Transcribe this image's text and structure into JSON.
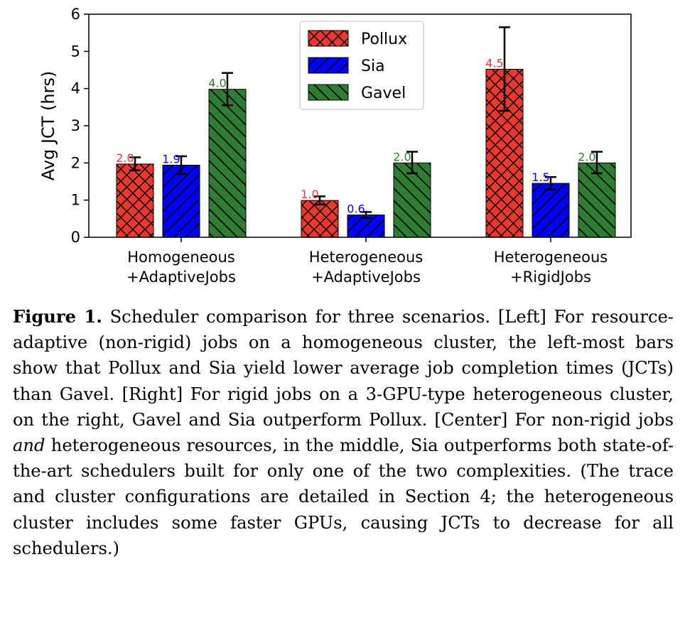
{
  "chart_data": {
    "type": "bar",
    "categories": [
      "Homogeneous\n+AdaptiveJobs",
      "Heterogeneous\n+AdaptiveJobs",
      "Heterogeneous\n+RigidJobs"
    ],
    "series": [
      {
        "name": "Pollux",
        "values": [
          1.97,
          0.99,
          4.52
        ],
        "err_low": [
          1.8,
          0.88,
          3.4
        ],
        "err_high": [
          2.15,
          1.1,
          5.65
        ],
        "labels": [
          "2.0",
          "1.0",
          "4.5"
        ],
        "color": "#e8392f",
        "label_color": "#e8392f",
        "hatch": "cross"
      },
      {
        "name": "Sia",
        "values": [
          1.94,
          0.6,
          1.45
        ],
        "err_low": [
          1.7,
          0.52,
          1.28
        ],
        "err_high": [
          2.18,
          0.68,
          1.62
        ],
        "labels": [
          "1.9",
          "0.6",
          "1.5"
        ],
        "color": "#0000ff",
        "label_color": "#0000ff",
        "hatch": "forward"
      },
      {
        "name": "Gavel",
        "values": [
          3.98,
          2.0,
          2.0
        ],
        "err_low": [
          3.55,
          1.72,
          1.72
        ],
        "err_high": [
          4.42,
          2.3,
          2.3
        ],
        "labels": [
          "4.0",
          "2.0",
          "2.0"
        ],
        "color": "#2e7d32",
        "label_color": "#2e7d32",
        "hatch": "back"
      }
    ],
    "title": "",
    "xlabel": "",
    "ylabel": "Avg JCT (hrs)",
    "ylim": [
      0,
      6
    ],
    "yticks": [
      0,
      1,
      2,
      3,
      4,
      5,
      6
    ],
    "grid": false,
    "legend": "top-center"
  },
  "caption": {
    "label": "Figure 1.",
    "text_before_em": " Scheduler comparison for three scenarios. [Left] For resource-adaptive (non-rigid) jobs on a homogeneous cluster, the left-most bars show that Pollux and Sia yield lower average job com­pletion times (JCTs) than Gavel. [Right] For rigid jobs on a 3-GPU-type heterogeneous cluster, on the right, Gavel and Sia outperform Pollux. [Center] For non-rigid jobs ",
    "em": "and",
    "text_after_em": " heterogeneous resources, in the middle, Sia outperforms both state-of-the-art schedulers built for only one of the two complexities. (The trace and cluster configu­rations are detailed in Section 4; the heterogeneous cluster includes some faster GPUs, causing JCTs to decrease for all schedulers.)"
  }
}
